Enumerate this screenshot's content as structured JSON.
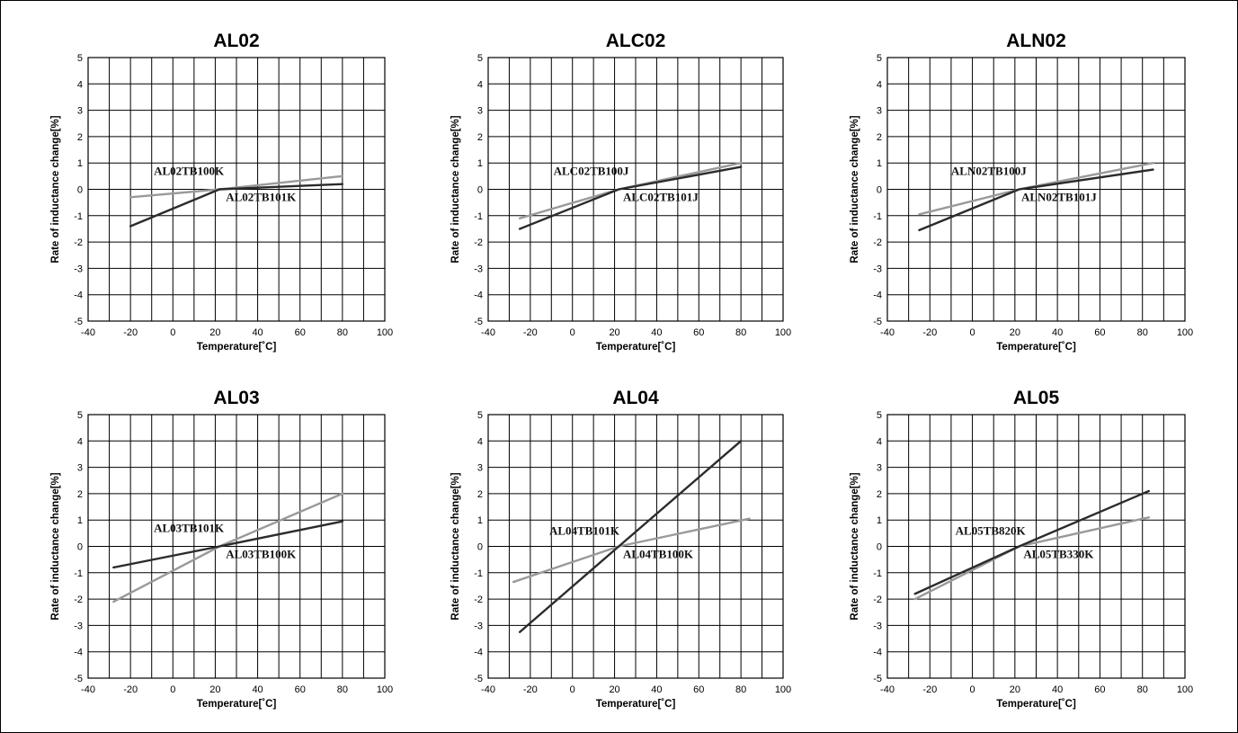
{
  "colors": {
    "dark_series": "#2b2b2b",
    "light_series": "#9a9a9a",
    "grid": "#000000"
  },
  "chart_data": [
    {
      "type": "line",
      "title": "AL02",
      "xlabel": "Temperature[˚C]",
      "ylabel": "Rate of inductance change[%]",
      "xlim": [
        -40,
        100
      ],
      "ylim": [
        -5,
        5
      ],
      "xticks": [
        -40,
        -20,
        0,
        20,
        40,
        60,
        80,
        100
      ],
      "yticks": [
        5,
        4,
        3,
        2,
        1,
        0,
        -1,
        -2,
        -3,
        -4,
        -5
      ],
      "grid": true,
      "series": [
        {
          "name": "AL02TB100K",
          "color": "dark",
          "x": [
            -20,
            22,
            80
          ],
          "y": [
            -1.4,
            0,
            0.2
          ]
        },
        {
          "name": "AL02TB101K",
          "color": "light",
          "x": [
            -20,
            22,
            80
          ],
          "y": [
            -0.3,
            0,
            0.5
          ]
        }
      ],
      "annotations": [
        {
          "text": "AL02TB100K",
          "x": -9,
          "y": 0.55
        },
        {
          "text": "AL02TB101K",
          "x": 25,
          "y": -0.45
        }
      ]
    },
    {
      "type": "line",
      "title": "ALC02",
      "xlabel": "Temperature[˚C]",
      "ylabel": "Rate of inductance change[%]",
      "xlim": [
        -40,
        100
      ],
      "ylim": [
        -5,
        5
      ],
      "xticks": [
        -40,
        -20,
        0,
        20,
        40,
        60,
        80,
        100
      ],
      "yticks": [
        5,
        4,
        3,
        2,
        1,
        0,
        -1,
        -2,
        -3,
        -4,
        -5
      ],
      "grid": true,
      "series": [
        {
          "name": "ALC02TB100J",
          "color": "dark",
          "x": [
            -25,
            22,
            80
          ],
          "y": [
            -1.5,
            0,
            0.85
          ]
        },
        {
          "name": "ALC02TB101J",
          "color": "light",
          "x": [
            -25,
            22,
            80
          ],
          "y": [
            -1.1,
            0,
            1.0
          ]
        }
      ],
      "annotations": [
        {
          "text": "ALC02TB100J",
          "x": -9,
          "y": 0.55
        },
        {
          "text": "ALC02TB101J",
          "x": 24,
          "y": -0.45
        }
      ]
    },
    {
      "type": "line",
      "title": "ALN02",
      "xlabel": "Temperature[˚C]",
      "ylabel": "Rate of inductance change[%]",
      "xlim": [
        -40,
        100
      ],
      "ylim": [
        -5,
        5
      ],
      "xticks": [
        -40,
        -20,
        0,
        20,
        40,
        60,
        80,
        100
      ],
      "yticks": [
        5,
        4,
        3,
        2,
        1,
        0,
        -1,
        -2,
        -3,
        -4,
        -5
      ],
      "grid": true,
      "series": [
        {
          "name": "ALN02TB100J",
          "color": "dark",
          "x": [
            -25,
            22,
            85
          ],
          "y": [
            -1.55,
            0,
            0.75
          ]
        },
        {
          "name": "ALN02TB101J",
          "color": "light",
          "x": [
            -25,
            22,
            85
          ],
          "y": [
            -0.95,
            0,
            1.0
          ]
        }
      ],
      "annotations": [
        {
          "text": "ALN02TB100J",
          "x": -10,
          "y": 0.55
        },
        {
          "text": "ALN02TB101J",
          "x": 23,
          "y": -0.45
        }
      ]
    },
    {
      "type": "line",
      "title": "AL03",
      "xlabel": "Temperature[˚C]",
      "ylabel": "Rate of inductance change[%]",
      "xlim": [
        -40,
        100
      ],
      "ylim": [
        -5,
        5
      ],
      "xticks": [
        -40,
        -20,
        0,
        20,
        40,
        60,
        80,
        100
      ],
      "yticks": [
        5,
        4,
        3,
        2,
        1,
        0,
        -1,
        -2,
        -3,
        -4,
        -5
      ],
      "grid": true,
      "series": [
        {
          "name": "AL03TB101K",
          "color": "dark",
          "x": [
            -28,
            22,
            80
          ],
          "y": [
            -0.8,
            0,
            0.95
          ]
        },
        {
          "name": "AL03TB100K",
          "color": "light",
          "x": [
            -28,
            22,
            80
          ],
          "y": [
            -2.1,
            0,
            2.0
          ]
        }
      ],
      "annotations": [
        {
          "text": "AL03TB101K",
          "x": -9,
          "y": 0.55
        },
        {
          "text": "AL03TB100K",
          "x": 25,
          "y": -0.45
        }
      ]
    },
    {
      "type": "line",
      "title": "AL04",
      "xlabel": "Temperature[˚C]",
      "ylabel": "Rate of inductance change[%]",
      "xlim": [
        -40,
        100
      ],
      "ylim": [
        -5,
        5
      ],
      "xticks": [
        -40,
        -20,
        0,
        20,
        40,
        60,
        80,
        100
      ],
      "yticks": [
        5,
        4,
        3,
        2,
        1,
        0,
        -1,
        -2,
        -3,
        -4,
        -5
      ],
      "grid": true,
      "series": [
        {
          "name": "AL04TB101K",
          "color": "dark",
          "x": [
            -25,
            22,
            80
          ],
          "y": [
            -3.25,
            0,
            4.0
          ]
        },
        {
          "name": "AL04TB100K",
          "color": "light",
          "x": [
            -28,
            22,
            84
          ],
          "y": [
            -1.35,
            0,
            1.05
          ]
        }
      ],
      "annotations": [
        {
          "text": "AL04TB101K",
          "x": -11,
          "y": 0.45
        },
        {
          "text": "AL04TB100K",
          "x": 24,
          "y": -0.45
        }
      ]
    },
    {
      "type": "line",
      "title": "AL05",
      "xlabel": "Temperature[˚C]",
      "ylabel": "Rate of inductance change[%]",
      "xlim": [
        -40,
        100
      ],
      "ylim": [
        -5,
        5
      ],
      "xticks": [
        -40,
        -20,
        0,
        20,
        40,
        60,
        80,
        100
      ],
      "yticks": [
        5,
        4,
        3,
        2,
        1,
        0,
        -1,
        -2,
        -3,
        -4,
        -5
      ],
      "grid": true,
      "series": [
        {
          "name": "AL05TB820K",
          "color": "dark",
          "x": [
            -27,
            22,
            83
          ],
          "y": [
            -1.8,
            0,
            2.1
          ]
        },
        {
          "name": "AL05TB330K",
          "color": "light",
          "x": [
            -27,
            22,
            83
          ],
          "y": [
            -2.0,
            0,
            1.1
          ]
        }
      ],
      "annotations": [
        {
          "text": "AL05TB820K",
          "x": -8,
          "y": 0.45
        },
        {
          "text": "AL05TB330K",
          "x": 24,
          "y": -0.45
        }
      ]
    }
  ]
}
